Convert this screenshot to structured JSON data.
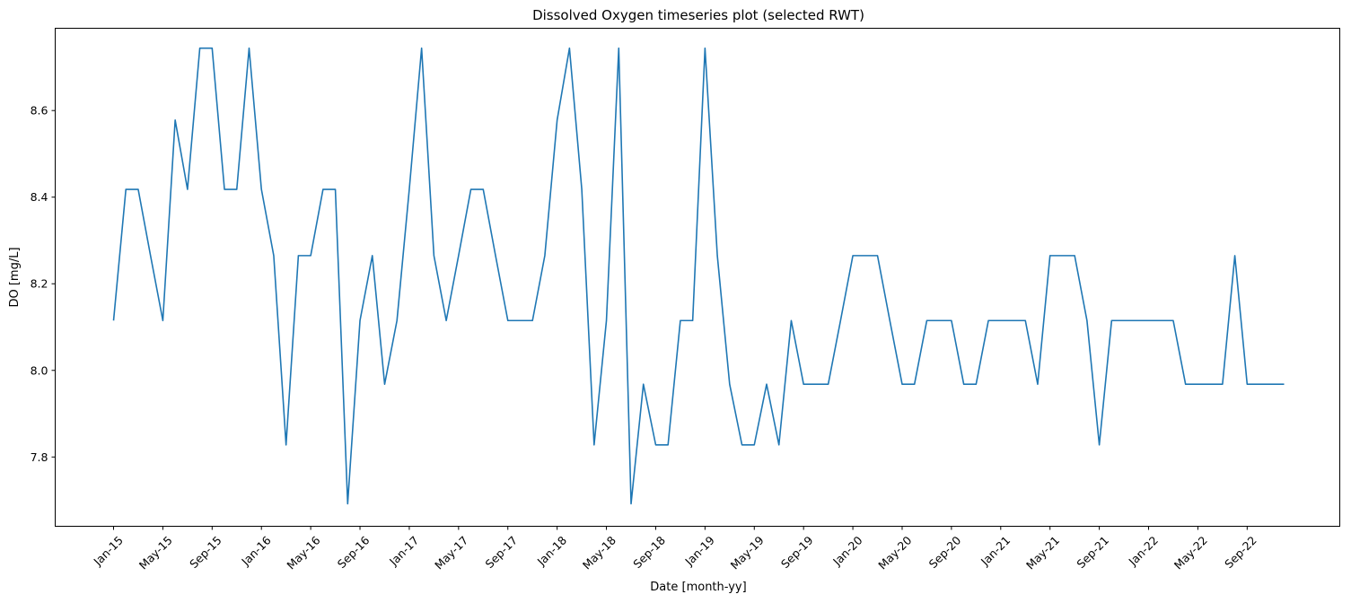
{
  "chart_data": {
    "type": "line",
    "title": "Dissolved Oxygen timeseries plot (selected RWT)",
    "xlabel": "Date [month-yy]",
    "ylabel": "DO [mg/L]",
    "x_start": "2015-01",
    "x_end": "2022-12",
    "x_ticks": [
      "Jan-15",
      "May-15",
      "Sep-15",
      "Jan-16",
      "May-16",
      "Sep-16",
      "Jan-17",
      "May-17",
      "Sep-17",
      "Jan-18",
      "May-18",
      "Sep-18",
      "Jan-19",
      "May-19",
      "Sep-19",
      "Jan-20",
      "May-20",
      "Sep-20",
      "Jan-21",
      "May-21",
      "Sep-21",
      "Jan-22",
      "May-22",
      "Sep-22"
    ],
    "y_ticks": [
      7.8,
      8.0,
      8.2,
      8.4,
      8.6
    ],
    "y_tick_labels": [
      "7.8",
      "8.0",
      "8.2",
      "8.4",
      "8.6"
    ],
    "ylim": [
      7.64,
      8.79
    ],
    "grid": false,
    "legend": "none",
    "series": [
      {
        "color": "#1f77b4",
        "values": [
          8.115,
          8.418,
          8.418,
          8.265,
          8.115,
          8.578,
          8.418,
          8.744,
          8.744,
          8.418,
          8.418,
          8.744,
          8.418,
          8.265,
          7.828,
          8.265,
          8.265,
          8.418,
          8.418,
          7.692,
          8.115,
          8.265,
          7.968,
          8.115,
          8.418,
          8.744,
          8.265,
          8.115,
          8.265,
          8.418,
          8.418,
          8.265,
          8.115,
          8.115,
          8.115,
          8.265,
          8.578,
          8.744,
          8.418,
          7.828,
          8.115,
          8.744,
          7.692,
          7.968,
          7.828,
          7.828,
          8.115,
          8.115,
          8.744,
          8.265,
          7.968,
          7.828,
          7.828,
          7.968,
          7.828,
          8.115,
          7.968,
          7.968,
          7.968,
          8.115,
          8.265,
          8.265,
          8.265,
          8.115,
          7.968,
          7.968,
          8.115,
          8.115,
          8.115,
          7.968,
          7.968,
          8.115,
          8.115,
          8.115,
          8.115,
          7.968,
          8.265,
          8.265,
          8.265,
          8.115,
          7.828,
          8.115,
          8.115,
          8.115,
          8.115,
          8.115,
          8.115,
          7.968,
          7.968,
          7.968,
          7.968,
          8.265,
          7.968,
          7.968,
          7.968,
          7.968
        ]
      }
    ]
  }
}
